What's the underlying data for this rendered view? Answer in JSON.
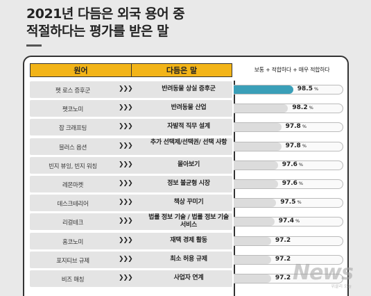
{
  "title_lines": [
    "2021년 다듬은 외국 용어 중",
    "적절하다는 평가를 받은 말"
  ],
  "header": {
    "term_label": "원어",
    "meaning_label": "다듬은 말",
    "note": "보통 + 적합하다 + 매우 적합하다"
  },
  "colors": {
    "accent": "#f2b418",
    "highlight": "#3a9fb8",
    "bar": "#dcdcdc"
  },
  "chart_data": {
    "type": "bar",
    "orientation": "horizontal",
    "xlim": [
      95,
      99
    ],
    "unit": "%",
    "categories": [
      "펫 로스 증후군",
      "펫코노미",
      "잡 크래프팅",
      "블러스 옵션",
      "빈지 뷰잉, 빈지 워칭",
      "레몬마켓",
      "데스크테리어",
      "리걸테크",
      "홈코노미",
      "포지티브 규제",
      "비즈 매칭"
    ],
    "meanings": [
      "반려동물 상실 증후군",
      "반려동물 산업",
      "자발적 직무 설계",
      "추가 선택제/선택권/ 선택 사항",
      "몰아보기",
      "정보 불균형 시장",
      "책상 꾸미기",
      "법률 정보 기술 / 법률 정보 기술 서비스",
      "재택 경제 활동",
      "최소 허용 규제",
      "사업자 연계"
    ],
    "values": [
      98.5,
      98.2,
      97.8,
      97.8,
      97.6,
      97.6,
      97.5,
      97.4,
      97.2,
      97.2,
      97.2
    ],
    "value_labels": [
      "98.5",
      "98.2",
      "97.8",
      "97.8",
      "97.6",
      "97.6",
      "97.5",
      "97.4",
      "97.2",
      "97.2",
      "97.2"
    ],
    "unit_labels": [
      "%",
      "%",
      "%",
      "%",
      "%",
      "%",
      "%",
      "%",
      "",
      "",
      ""
    ],
    "arrow_glyph": "❯❯❯"
  },
  "watermark": {
    "text": "News",
    "sub": "위클리 오늘"
  }
}
